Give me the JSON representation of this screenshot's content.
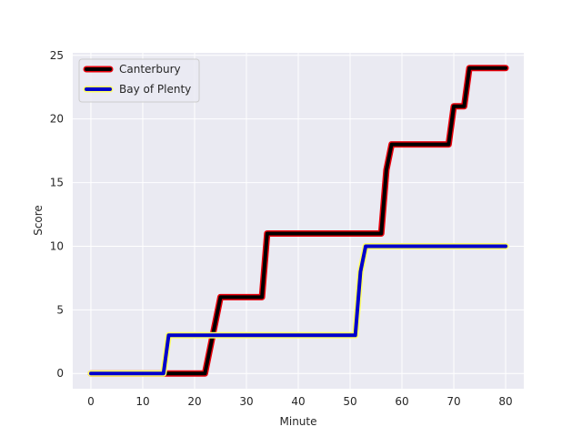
{
  "chart_data": {
    "type": "line",
    "title": "",
    "xlabel": "Minute",
    "ylabel": "Score",
    "xlim": [
      -3.5,
      83.5
    ],
    "ylim": [
      -1.2,
      25.2
    ],
    "xticks": [
      0,
      10,
      20,
      30,
      40,
      50,
      60,
      70,
      80
    ],
    "yticks": [
      0,
      5,
      10,
      15,
      20,
      25
    ],
    "grid": true,
    "background": "#eaeaf2",
    "legend_position": "top-left",
    "series": [
      {
        "name": "Canterbury",
        "color": "#000000",
        "edge_color": "#e8000b",
        "x": [
          0,
          22,
          25,
          33,
          34,
          56,
          57,
          58,
          69,
          70,
          72,
          73,
          80
        ],
        "y": [
          0,
          0,
          6,
          6,
          11,
          11,
          16,
          18,
          18,
          21,
          21,
          24,
          24
        ]
      },
      {
        "name": "Bay of Plenty",
        "color": "#0000cc",
        "edge_color": "#ffff66",
        "x": [
          0,
          14,
          15,
          51,
          52,
          53,
          80
        ],
        "y": [
          0,
          0,
          3,
          3,
          8,
          10,
          10
        ]
      }
    ]
  }
}
